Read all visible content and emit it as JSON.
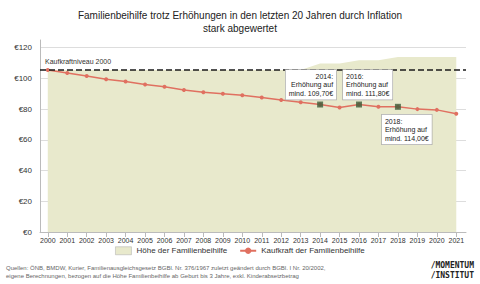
{
  "chart_data": {
    "type": "line",
    "title": "Familienbeihilfe trotz Erhöhungen in den letzten 20 Jahren durch Inflation\nstark abgewertet",
    "x": [
      2000,
      2001,
      2002,
      2003,
      2004,
      2005,
      2006,
      2007,
      2008,
      2009,
      2010,
      2011,
      2012,
      2013,
      2014,
      2015,
      2016,
      2017,
      2018,
      2019,
      2020,
      2021
    ],
    "xlim": [
      1999.6,
      2021.5
    ],
    "xticks": [
      2000,
      2001,
      2002,
      2003,
      2004,
      2005,
      2006,
      2007,
      2008,
      2009,
      2010,
      2011,
      2012,
      2013,
      2014,
      2015,
      2016,
      2017,
      2018,
      2019,
      2020,
      2021
    ],
    "ylim": [
      0,
      125
    ],
    "yticks": [
      {
        "value": 0,
        "label": "€0"
      },
      {
        "value": 20,
        "label": "€20"
      },
      {
        "value": 40,
        "label": "€40"
      },
      {
        "value": 60,
        "label": "€60"
      },
      {
        "value": 80,
        "label": "€80"
      },
      {
        "value": 100,
        "label": "€100"
      },
      {
        "value": 120,
        "label": "€120"
      }
    ],
    "grid": true,
    "legend": "bottom",
    "series": [
      {
        "name": "Höhe der Familienbeihilfe",
        "type": "area",
        "color": "#e8e9cc",
        "values": [
          105.5,
          105.5,
          105.5,
          105.5,
          105.5,
          105.5,
          105.5,
          105.5,
          105.5,
          105.5,
          105.5,
          105.5,
          105.5,
          105.5,
          109.7,
          109.7,
          111.8,
          111.8,
          114.0,
          114.0,
          114.0,
          114.0
        ]
      },
      {
        "name": "Kaufkraft der Familienbeihilfe",
        "type": "line",
        "color": "#e07060",
        "marker": "circle",
        "values": [
          105.5,
          103.5,
          101.5,
          99.5,
          98.0,
          96.0,
          94.5,
          92.5,
          91.0,
          90.0,
          89.0,
          87.5,
          86.0,
          84.5,
          83.0,
          81.0,
          83.0,
          81.5,
          81.5,
          80.0,
          79.5,
          77.0
        ]
      }
    ],
    "reference_line": {
      "y": 105.5,
      "label": "Kaufkraftniveau 2000",
      "color": "#1a1a1a",
      "line_style": "dashed"
    },
    "highlights": {
      "x": [
        2014,
        2016,
        2018
      ],
      "values": [
        83.0,
        83.0,
        81.5
      ],
      "color": "#3d5c3a",
      "marker": "square"
    },
    "annotations": [
      {
        "x": 2014,
        "text": "2014:\nErhöhung auf\nmind. 109,70€"
      },
      {
        "x": 2016,
        "text": "2016:\nErhöhung auf\nmind. 111,80€"
      },
      {
        "x": 2018,
        "text": "2018:\nErhöhung auf\nmind. 114,00€"
      }
    ],
    "source": "Quellen: ÖNB, BMDW, Kurier, Familienausgleichsgesetz BGBl. Nr. 376/1967 zuletzt geändert durch BGBl. I Nr. 20/2002,\neigene Berechnungen, bezogen auf die Höhe Familienbeihilfe ab Geburt bis 3 Jahre, exkl. Kinderabsetzbetrag",
    "logo": "/MOMENTUM\n/INSTITUT"
  }
}
